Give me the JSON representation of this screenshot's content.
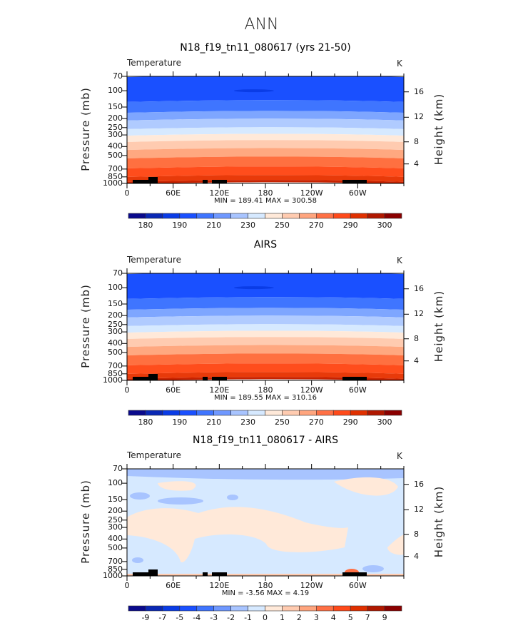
{
  "main_title": "ANN",
  "chart_data": [
    {
      "type": "heatmap",
      "title": "N18_f19_tn11_080617 (yrs 21-50)",
      "variable": "Temperature",
      "units": "K",
      "ylabel": "Pressure (mb)",
      "ylabel_right": "Height (km)",
      "yticks": [
        70,
        100,
        150,
        200,
        250,
        300,
        400,
        500,
        700,
        850,
        1000
      ],
      "yticks_right": [
        4,
        8,
        12,
        16
      ],
      "xticks": [
        "0",
        "60E",
        "120E",
        "180",
        "120W",
        "60W"
      ],
      "xlim": [
        0,
        360
      ],
      "ylim": [
        1000,
        70
      ],
      "min_max": "MIN = 189.41   MAX = 300.58",
      "colorbar_labels": [
        "180",
        "190",
        "210",
        "230",
        "250",
        "270",
        "290",
        "300"
      ],
      "bands": [
        [
          70,
          130,
          "#1a50ff"
        ],
        [
          130,
          170,
          "#3f75ff"
        ],
        [
          170,
          206,
          "#7ea6ff"
        ],
        [
          206,
          255,
          "#b0cbff"
        ],
        [
          255,
          300,
          "#d6e9ff"
        ],
        [
          300,
          351,
          "#ffe9d9"
        ],
        [
          351,
          428,
          "#ffcbb0"
        ],
        [
          428,
          528,
          "#ffa880"
        ],
        [
          528,
          676,
          "#ff7040"
        ],
        [
          676,
          836,
          "#ff4d1c"
        ],
        [
          836,
          945,
          "#e83a0a"
        ],
        [
          945,
          1000,
          "#c82200"
        ]
      ]
    },
    {
      "type": "heatmap",
      "title": "AIRS",
      "variable": "Temperature",
      "units": "K",
      "ylabel": "Pressure (mb)",
      "ylabel_right": "Height (km)",
      "yticks": [
        70,
        100,
        150,
        200,
        250,
        300,
        400,
        500,
        700,
        850,
        1000
      ],
      "yticks_right": [
        4,
        8,
        12,
        16
      ],
      "xticks": [
        "0",
        "60E",
        "120E",
        "180",
        "120W",
        "60W"
      ],
      "xlim": [
        0,
        360
      ],
      "ylim": [
        1000,
        70
      ],
      "min_max": "MIN = 189.55   MAX = 310.16",
      "colorbar_labels": [
        "180",
        "190",
        "210",
        "230",
        "250",
        "270",
        "290",
        "300"
      ],
      "bands": [
        [
          70,
          130,
          "#1a50ff"
        ],
        [
          130,
          170,
          "#3f75ff"
        ],
        [
          170,
          206,
          "#7ea6ff"
        ],
        [
          206,
          255,
          "#b0cbff"
        ],
        [
          255,
          300,
          "#d6e9ff"
        ],
        [
          300,
          351,
          "#ffe9d9"
        ],
        [
          351,
          428,
          "#ffcbb0"
        ],
        [
          428,
          528,
          "#ffa880"
        ],
        [
          528,
          676,
          "#ff7040"
        ],
        [
          676,
          836,
          "#ff4d1c"
        ],
        [
          836,
          945,
          "#e83a0a"
        ],
        [
          945,
          1000,
          "#c82200"
        ]
      ]
    },
    {
      "type": "heatmap",
      "title": "N18_f19_tn11_080617 - AIRS",
      "variable": "Temperature",
      "units": "K",
      "ylabel": "Pressure (mb)",
      "ylabel_right": "Height (km)",
      "yticks": [
        70,
        100,
        150,
        200,
        250,
        300,
        400,
        500,
        700,
        850,
        1000
      ],
      "yticks_right": [
        4,
        8,
        12,
        16
      ],
      "xticks": [
        "0",
        "60E",
        "120E",
        "180",
        "120W",
        "60W"
      ],
      "xlim": [
        0,
        360
      ],
      "ylim": [
        1000,
        70
      ],
      "min_max": "MIN =   -3.56   MAX =     4.19",
      "colorbar_labels": [
        "-9",
        "-7",
        "-5",
        "-4",
        "-3",
        "-2",
        "-1",
        "0",
        "1",
        "2",
        "3",
        "4",
        "5",
        "7",
        "9"
      ],
      "bands": []
    }
  ],
  "colorbar_colors": [
    "#0a0a8c",
    "#0a28b4",
    "#0a3ce6",
    "#1a50ff",
    "#3f75ff",
    "#6f98ff",
    "#a8c4ff",
    "#d6e9ff",
    "#ffe9d9",
    "#ffcbb0",
    "#ffa57e",
    "#ff7045",
    "#ff4a1a",
    "#e03000",
    "#b01800",
    "#8b0000"
  ]
}
